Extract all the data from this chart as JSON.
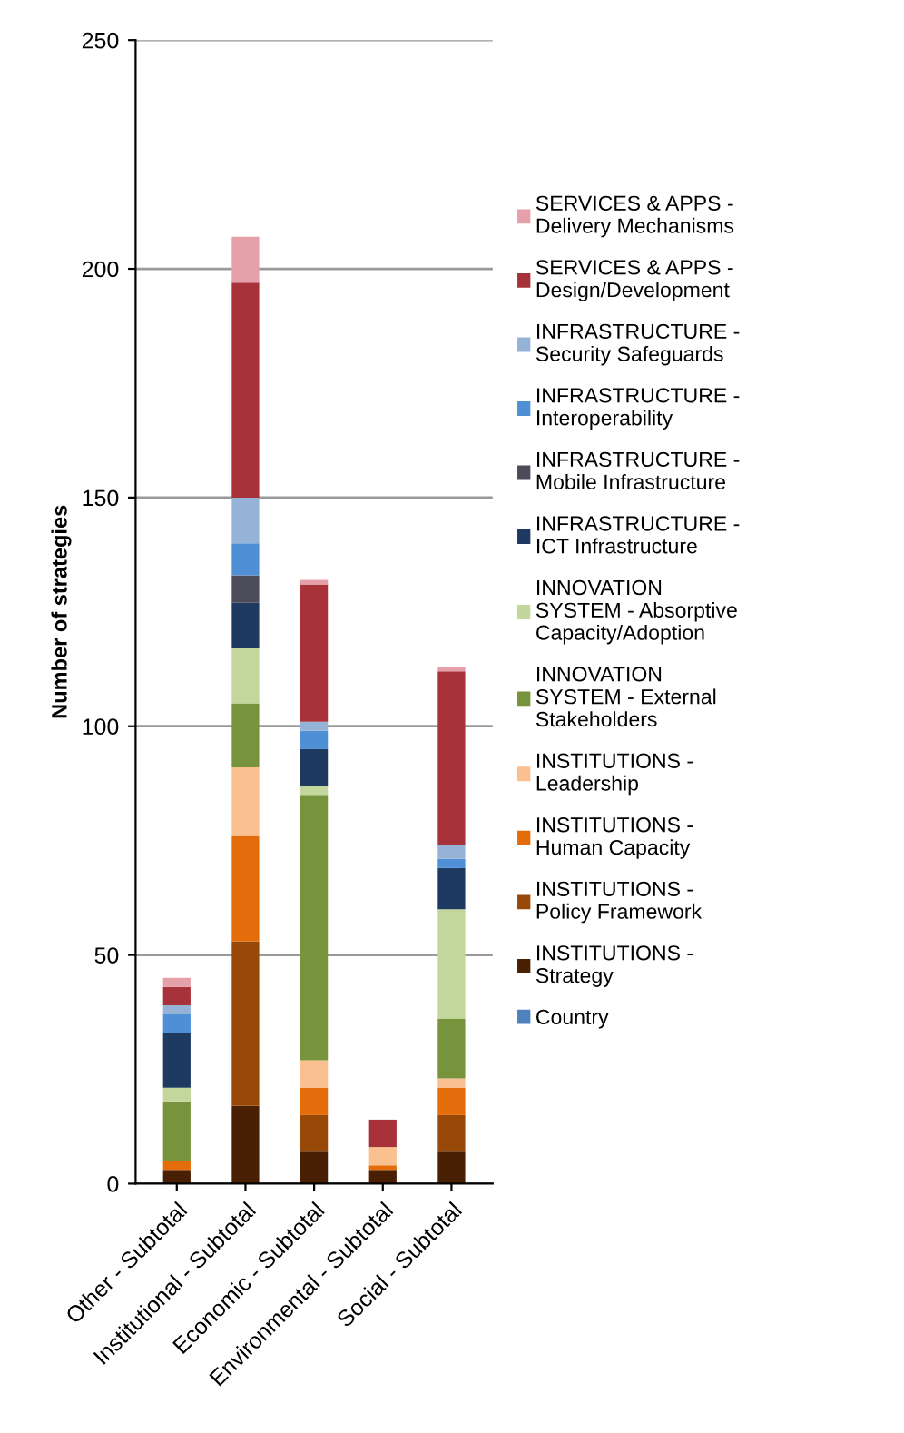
{
  "chart_data": {
    "type": "bar",
    "stacked": true,
    "ylabel": "Number of strategies",
    "categories": [
      "Other - Subtotal",
      "Institutional - Subtotal",
      "Economic - Subtotal",
      "Environmental - Subtotal",
      "Social - Subtotal"
    ],
    "ylim": [
      0,
      250
    ],
    "yticks": [
      0,
      50,
      100,
      150,
      200,
      250
    ],
    "grid": "y",
    "legend": "right",
    "series": [
      {
        "name": "Country",
        "color": "#4f81bd",
        "values": [
          0,
          0,
          0,
          0,
          0
        ]
      },
      {
        "name": "INSTITUTIONS -\nStrategy",
        "color": "#4a2005",
        "values": [
          3,
          17,
          7,
          3,
          7
        ]
      },
      {
        "name": "INSTITUTIONS -\nPolicy Framework",
        "color": "#984807",
        "values": [
          0,
          36,
          8,
          0,
          8
        ]
      },
      {
        "name": "INSTITUTIONS -\nHuman Capacity",
        "color": "#e46c0a",
        "values": [
          2,
          23,
          6,
          1,
          6
        ]
      },
      {
        "name": "INSTITUTIONS -\nLeadership",
        "color": "#fac090",
        "values": [
          0,
          15,
          6,
          4,
          2
        ]
      },
      {
        "name": "INNOVATION\nSYSTEM - External\nStakeholders",
        "color": "#77933c",
        "values": [
          13,
          14,
          58,
          0,
          13
        ]
      },
      {
        "name": "INNOVATION\nSYSTEM - Absorptive\nCapacity/Adoption",
        "color": "#c3d69b",
        "values": [
          3,
          12,
          2,
          0,
          24
        ]
      },
      {
        "name": "INFRASTRUCTURE -\nICT Infrastructure",
        "color": "#1f3a60",
        "values": [
          12,
          10,
          8,
          0,
          9
        ]
      },
      {
        "name": "INFRASTRUCTURE -\nMobile Infrastructure",
        "color": "#4b4b5a",
        "values": [
          0,
          6,
          0,
          0,
          0
        ]
      },
      {
        "name": "INFRASTRUCTURE -\nInteroperability",
        "color": "#4f8fd6",
        "values": [
          4,
          7,
          4,
          0,
          2
        ]
      },
      {
        "name": "INFRASTRUCTURE -\nSecurity Safeguards",
        "color": "#95b3d7",
        "values": [
          2,
          10,
          2,
          0,
          3
        ]
      },
      {
        "name": "SERVICES & APPS -\nDesign/Development",
        "color": "#a8323a",
        "values": [
          4,
          47,
          30,
          6,
          38
        ]
      },
      {
        "name": "SERVICES & APPS -\nDelivery Mechanisms",
        "color": "#e6a0aa",
        "values": [
          2,
          10,
          1,
          0,
          1
        ]
      }
    ]
  }
}
